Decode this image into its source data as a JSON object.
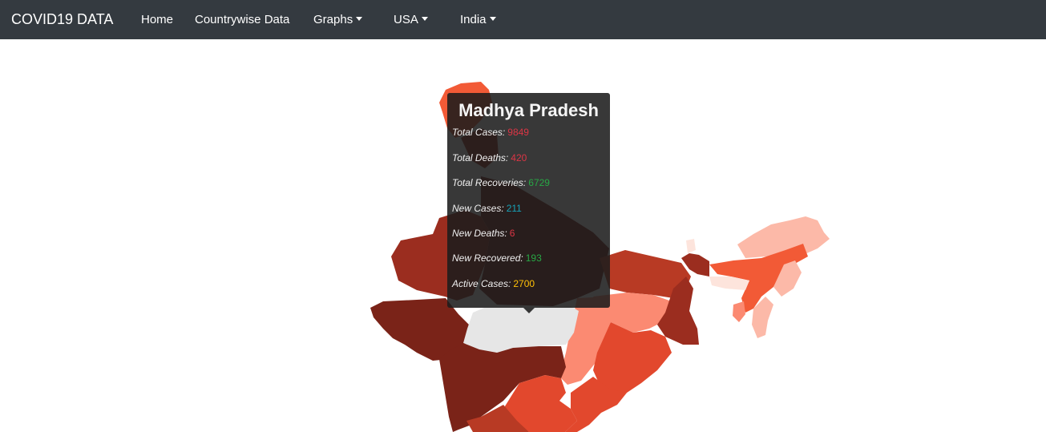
{
  "navbar": {
    "brand": "COVID19 DATA",
    "items": [
      {
        "label": "Home",
        "dropdown": false
      },
      {
        "label": "Countrywise Data",
        "dropdown": false
      },
      {
        "label": "Graphs",
        "dropdown": true
      },
      {
        "label": "USA",
        "dropdown": true
      },
      {
        "label": "India",
        "dropdown": true
      }
    ]
  },
  "tooltip": {
    "state": "Madhya Pradesh",
    "rows": [
      {
        "label": "Total Cases:",
        "value": "9849",
        "color": "#dc3545"
      },
      {
        "label": "Total Deaths:",
        "value": "420",
        "color": "#dc3545"
      },
      {
        "label": "Total Recoveries:",
        "value": "6729",
        "color": "#28a745"
      },
      {
        "label": "New Cases:",
        "value": "211",
        "color": "#17a2b8"
      },
      {
        "label": "New Deaths:",
        "value": "6",
        "color": "#dc3545"
      },
      {
        "label": "New Recovered:",
        "value": "193",
        "color": "#28a745"
      },
      {
        "label": "Active Cases:",
        "value": "2700",
        "color": "#ffc107"
      }
    ]
  },
  "map": {
    "palette": {
      "darkest": "#7a2318",
      "dark": "#9b2d1f",
      "medium_dark": "#b83a24",
      "medium": "#e2482d",
      "orange_red": "#f25a36",
      "light": "#fb8a72",
      "lighter": "#fcb9a8",
      "lightest": "#fde4dc",
      "hovered": "#e6e6e6"
    }
  }
}
